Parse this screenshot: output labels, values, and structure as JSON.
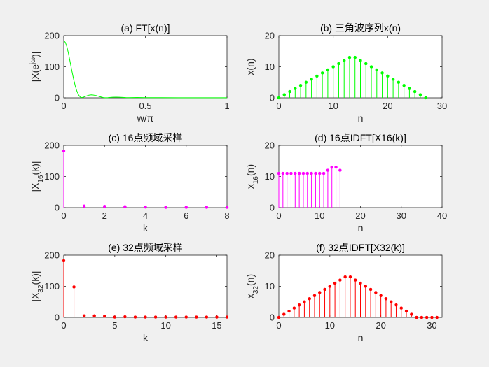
{
  "figure": {
    "background": "#f0f0f0"
  },
  "chart_data": [
    {
      "id": "a",
      "type": "line",
      "title": "(a) FT[x(n)]",
      "xlabel": "w/π",
      "ylabel": "|X(e^{jω})|",
      "color": "#00ff00",
      "xlim": [
        0,
        1
      ],
      "ylim": [
        0,
        200
      ],
      "xticks": [
        0,
        0.5,
        1
      ],
      "yticks": [
        0,
        100,
        200
      ],
      "xticklabels": [
        "0",
        "0.5",
        "1"
      ],
      "yticklabels": [
        "0",
        "100",
        "200"
      ],
      "x": [
        0,
        0.01,
        0.02,
        0.03,
        0.04,
        0.05,
        0.06,
        0.07,
        0.08,
        0.09,
        0.1,
        0.11,
        0.12,
        0.13,
        0.14,
        0.15,
        0.16,
        0.17,
        0.18,
        0.19,
        0.2,
        0.21,
        0.22,
        0.23,
        0.24,
        0.25,
        0.26,
        0.27,
        0.28,
        0.3,
        0.32,
        0.34,
        0.36,
        0.38,
        0.4,
        0.45,
        0.5,
        0.6,
        0.7,
        0.8,
        0.9,
        1.0
      ],
      "y": [
        184,
        178,
        163,
        140,
        113,
        86,
        61,
        39,
        22,
        10,
        3,
        1,
        2,
        4,
        6,
        8,
        9,
        9.5,
        9,
        8,
        7,
        5.5,
        4,
        2.5,
        1.2,
        0.5,
        0.3,
        0.5,
        1,
        2,
        2.2,
        2,
        1.5,
        0.8,
        0.5,
        1,
        0.6,
        0.5,
        0.4,
        0.3,
        0.3,
        0.3
      ]
    },
    {
      "id": "b",
      "type": "stem",
      "title": "(b) 三角波序列x(n)",
      "xlabel": "n",
      "ylabel": "x(n)",
      "color": "#00ff00",
      "xlim": [
        0,
        30
      ],
      "ylim": [
        0,
        20
      ],
      "xticks": [
        0,
        10,
        20,
        30
      ],
      "yticks": [
        0,
        10,
        20
      ],
      "xticklabels": [
        "0",
        "10",
        "20",
        "30"
      ],
      "yticklabels": [
        "0",
        "10",
        "20"
      ],
      "x": [
        0,
        1,
        2,
        3,
        4,
        5,
        6,
        7,
        8,
        9,
        10,
        11,
        12,
        13,
        14,
        15,
        16,
        17,
        18,
        19,
        20,
        21,
        22,
        23,
        24,
        25,
        26,
        27
      ],
      "y": [
        0,
        1,
        2,
        3,
        4,
        5,
        6,
        7,
        8,
        9,
        10,
        11,
        12,
        13,
        13,
        12,
        11,
        10,
        9,
        8,
        7,
        6,
        5,
        4,
        3,
        2,
        1,
        0
      ]
    },
    {
      "id": "c",
      "type": "stem",
      "title": "(c) 16点频域采样",
      "xlabel": "k",
      "ylabel": "|X_{16}(k)|",
      "color": "#ff00ff",
      "xlim": [
        0,
        8
      ],
      "ylim": [
        0,
        200
      ],
      "xticks": [
        0,
        2,
        4,
        6,
        8
      ],
      "yticks": [
        0,
        100,
        200
      ],
      "xticklabels": [
        "0",
        "2",
        "4",
        "6",
        "8"
      ],
      "yticklabels": [
        "0",
        "100",
        "200"
      ],
      "x": [
        0,
        1,
        2,
        3,
        4,
        5,
        6,
        7,
        8
      ],
      "y": [
        182,
        5,
        4,
        3,
        2,
        1,
        1,
        1,
        1
      ]
    },
    {
      "id": "d",
      "type": "stem",
      "title": "(d) 16点IDFT[X16(k)]",
      "xlabel": "n",
      "ylabel": "x_{16}(n)",
      "color": "#ff00ff",
      "xlim": [
        0,
        40
      ],
      "ylim": [
        0,
        20
      ],
      "xticks": [
        0,
        10,
        20,
        30,
        40
      ],
      "yticks": [
        0,
        10,
        20
      ],
      "xticklabels": [
        "0",
        "10",
        "20",
        "30",
        "40"
      ],
      "yticklabels": [
        "0",
        "10",
        "20"
      ],
      "x": [
        0,
        1,
        2,
        3,
        4,
        5,
        6,
        7,
        8,
        9,
        10,
        11,
        12,
        13,
        14,
        15
      ],
      "y": [
        11,
        11,
        11,
        11,
        11,
        11,
        11,
        11,
        11,
        11,
        11,
        11,
        12,
        13,
        13,
        12
      ]
    },
    {
      "id": "e",
      "type": "stem",
      "title": "(e) 32点频域采样",
      "xlabel": "k",
      "ylabel": "|X_{32}(k)|",
      "color": "#ff0000",
      "xlim": [
        0,
        16
      ],
      "ylim": [
        0,
        200
      ],
      "xticks": [
        0,
        5,
        10,
        15
      ],
      "yticks": [
        0,
        100,
        200
      ],
      "xticklabels": [
        "0",
        "5",
        "10",
        "15"
      ],
      "yticklabels": [
        "0",
        "100",
        "200"
      ],
      "x": [
        0,
        1,
        2,
        3,
        4,
        5,
        6,
        7,
        8,
        9,
        10,
        11,
        12,
        13,
        14,
        15,
        16
      ],
      "y": [
        182,
        98,
        5,
        5,
        4,
        1,
        2,
        1,
        1,
        1,
        1,
        1,
        1,
        1,
        1,
        1,
        1
      ]
    },
    {
      "id": "f",
      "type": "stem",
      "title": "(f) 32点IDFT[X32(k)]",
      "xlabel": "n",
      "ylabel": "x_{32}(n)",
      "color": "#ff0000",
      "xlim": [
        0,
        32
      ],
      "ylim": [
        0,
        20
      ],
      "xticks": [
        0,
        10,
        20,
        30
      ],
      "yticks": [
        0,
        10,
        20
      ],
      "xticklabels": [
        "0",
        "10",
        "20",
        "30"
      ],
      "yticklabels": [
        "0",
        "10",
        "20"
      ],
      "x": [
        0,
        1,
        2,
        3,
        4,
        5,
        6,
        7,
        8,
        9,
        10,
        11,
        12,
        13,
        14,
        15,
        16,
        17,
        18,
        19,
        20,
        21,
        22,
        23,
        24,
        25,
        26,
        27,
        28,
        29,
        30,
        31
      ],
      "y": [
        0,
        1,
        2,
        3,
        4,
        5,
        6,
        7,
        8,
        9,
        10,
        11,
        12,
        13,
        13,
        12,
        11,
        10,
        9,
        8,
        7,
        6,
        5,
        4,
        3,
        2,
        1,
        0,
        0,
        0,
        0,
        0
      ]
    }
  ]
}
